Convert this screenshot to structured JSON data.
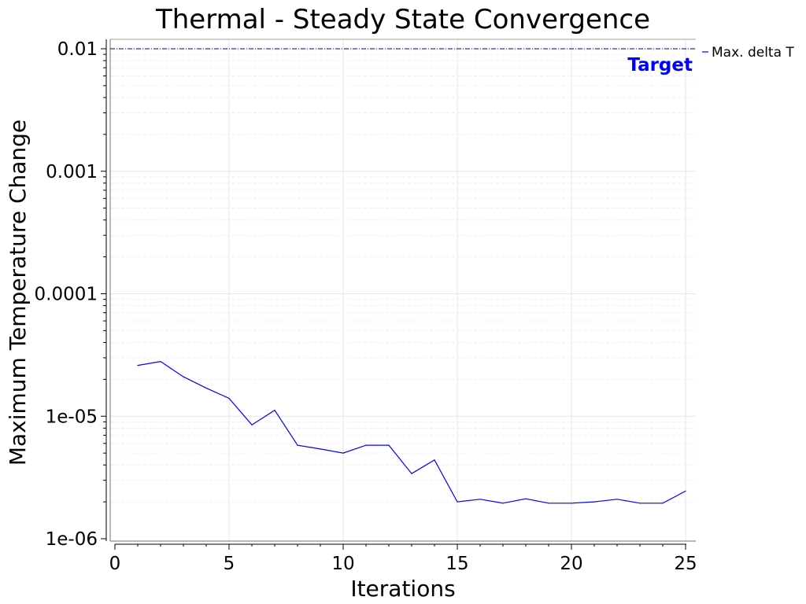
{
  "chart_data": {
    "type": "line",
    "title": "Thermal - Steady State Convergence",
    "xlabel": "Iterations",
    "ylabel": "Maximum Temperature Change",
    "xlim": [
      0,
      25
    ],
    "ylim": [
      1e-06,
      0.01
    ],
    "yscale": "log",
    "grid": true,
    "legend_position": "right",
    "x_ticks": [
      0,
      5,
      10,
      15,
      20,
      25
    ],
    "x_tick_labels": [
      "0",
      "5",
      "10",
      "15",
      "20",
      "25"
    ],
    "y_ticks": [
      0.01,
      0.001,
      0.0001,
      1e-05,
      1e-06
    ],
    "y_tick_labels": [
      "0.01",
      "0.001",
      "0.0001",
      "1e-05",
      "1e-06"
    ],
    "series": [
      {
        "name": "Max. delta T",
        "color": "#0000ff",
        "x": [
          1,
          2,
          3,
          4,
          5,
          6,
          7,
          8,
          9,
          10,
          11,
          12,
          13,
          14,
          15,
          16,
          17,
          18,
          19,
          20,
          21,
          22,
          23,
          24,
          25
        ],
        "y": [
          2.6e-05,
          2.8e-05,
          2.1e-05,
          1.7e-05,
          1.4e-05,
          8.5e-06,
          1.12e-05,
          5.8e-06,
          5.4e-06,
          5e-06,
          5.8e-06,
          5.8e-06,
          3.4e-06,
          4.4e-06,
          2e-06,
          2.1e-06,
          1.95e-06,
          2.12e-06,
          1.95e-06,
          1.95e-06,
          2e-06,
          2.1e-06,
          1.95e-06,
          1.95e-06,
          2.45e-06
        ]
      }
    ],
    "reference_lines": [
      {
        "label": "Target",
        "y": 0.01,
        "color": "#0000ff",
        "style": "dash-dot",
        "line_color": "#000080"
      }
    ]
  }
}
